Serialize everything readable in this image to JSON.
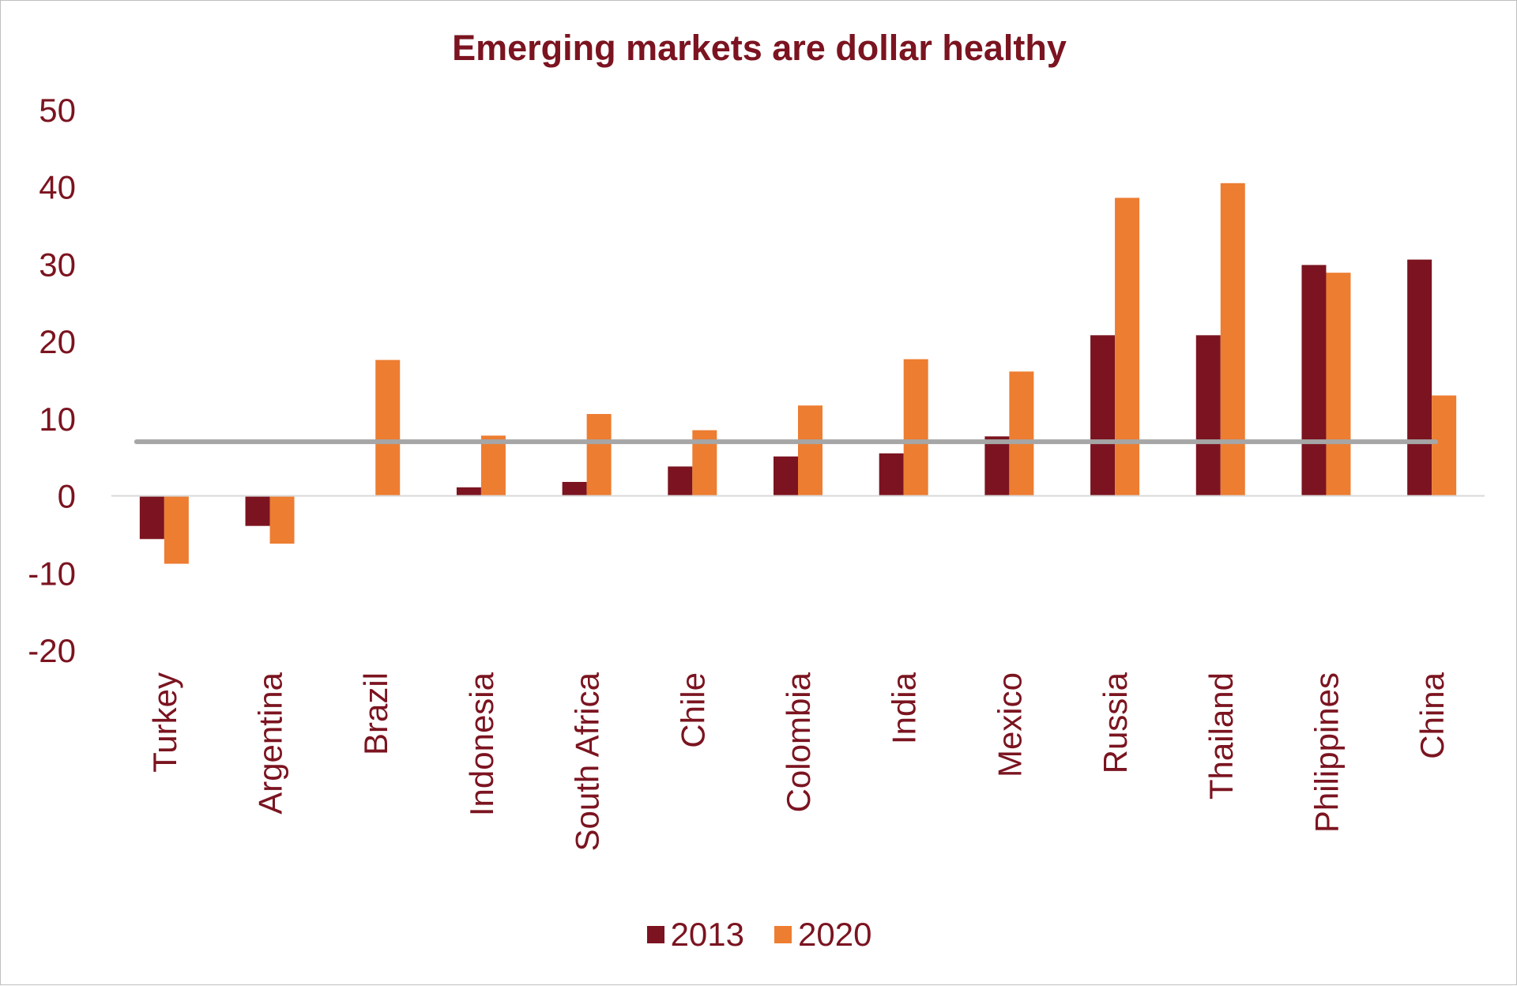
{
  "chart_data": {
    "type": "bar",
    "title": "Emerging markets are dollar healthy",
    "categories": [
      "Turkey",
      "Argentina",
      "Brazil",
      "Indonesia",
      "South Africa",
      "Chile",
      "Colombia",
      "India",
      "Mexico",
      "Russia",
      "Thailand",
      "Philippines",
      "China"
    ],
    "series": [
      {
        "name": "2013",
        "color": "#7b1420",
        "values": [
          -5.6,
          -3.9,
          0,
          1.1,
          1.8,
          3.8,
          5.1,
          5.5,
          7.7,
          20.8,
          20.8,
          29.9,
          30.6
        ]
      },
      {
        "name": "2020",
        "color": "#ed7d31",
        "values": [
          -8.8,
          -6.2,
          17.6,
          7.8,
          10.6,
          8.5,
          11.7,
          17.7,
          16.1,
          38.6,
          40.5,
          28.9,
          13.0
        ]
      }
    ],
    "reference_line": {
      "value": 7,
      "color": "#a6a6a6"
    },
    "ylim": [
      -20,
      50
    ],
    "yticks": [
      "-20",
      "-10",
      "0",
      "10",
      "20",
      "30",
      "40",
      "50"
    ],
    "xlabel": "",
    "ylabel": "",
    "grid": false,
    "legend_position": "bottom",
    "text_color": "#7b1420",
    "axis_color": "#d9d9d9"
  }
}
